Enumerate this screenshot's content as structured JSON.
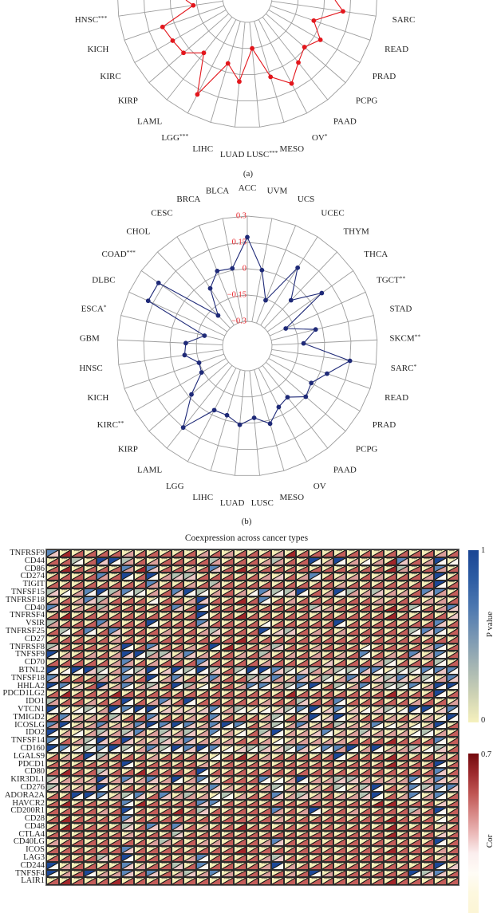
{
  "figure": {
    "panel_a_label": "(a)",
    "panel_b_label": "(b)"
  },
  "chart_data": [
    {
      "type": "radar",
      "panel": "(a)",
      "axes_count": 33,
      "ring_count": 5,
      "radial_range": [
        -0.3,
        0.3
      ],
      "axis_labels": [
        {
          "index": 9,
          "label": "HNSC",
          "sig": "***"
        },
        {
          "index": 10,
          "label": "KICH",
          "sig": ""
        },
        {
          "index": 11,
          "label": "KIRC",
          "sig": ""
        },
        {
          "index": 12,
          "label": "KIRP",
          "sig": ""
        },
        {
          "index": 13,
          "label": "LAML",
          "sig": ""
        },
        {
          "index": 14,
          "label": "LGG",
          "sig": "***"
        },
        {
          "index": 15,
          "label": "LIHC",
          "sig": ""
        },
        {
          "index": 16,
          "label": "LUAD",
          "sig": ""
        },
        {
          "index": 17,
          "label": "LUSC",
          "sig": "***"
        },
        {
          "index": 18,
          "label": "MESO",
          "sig": ""
        },
        {
          "index": 19,
          "label": "OV",
          "sig": "*"
        },
        {
          "index": 20,
          "label": "PAAD",
          "sig": ""
        },
        {
          "index": 21,
          "label": "PCPG",
          "sig": ""
        },
        {
          "index": 22,
          "label": "PRAD",
          "sig": ""
        },
        {
          "index": 23,
          "label": "READ",
          "sig": ""
        },
        {
          "index": 24,
          "label": "SARC",
          "sig": ""
        }
      ],
      "series": [
        {
          "color": "#e3161c",
          "closed": false,
          "clip_ends": [
            {
              "x": 233,
              "y": 0
            },
            {
              "x": 420,
              "y": 0
            }
          ],
          "points": [
            {
              "index": 9,
              "axis": "HNSC",
              "value": -0.13
            },
            {
              "index": 10,
              "axis": "KICH",
              "value": 0.07
            },
            {
              "index": 11,
              "axis": "KIRC",
              "value": 0.05
            },
            {
              "index": 12,
              "axis": "KIRP",
              "value": 0.04
            },
            {
              "index": 13,
              "axis": "LAML",
              "value": -0.04
            },
            {
              "index": 14,
              "axis": "LGG",
              "value": 0.18
            },
            {
              "index": 15,
              "axis": "LIHC",
              "value": -0.05
            },
            {
              "index": 16,
              "axis": "LUAD",
              "value": 0.04
            },
            {
              "index": 17,
              "axis": "LUSC",
              "value": -0.15
            },
            {
              "index": 18,
              "axis": "MESO",
              "value": 0.03
            },
            {
              "index": 19,
              "axis": "OV",
              "value": 0.11
            },
            {
              "index": 20,
              "axis": "PAAD",
              "value": 0.03
            },
            {
              "index": 21,
              "axis": "PCPG",
              "value": -0.01
            },
            {
              "index": 22,
              "axis": "PRAD",
              "value": 0.04
            },
            {
              "index": 23,
              "axis": "READ",
              "value": -0.04
            },
            {
              "index": 24,
              "axis": "SARC",
              "value": 0.11
            }
          ]
        }
      ]
    },
    {
      "type": "radar",
      "panel": "(b)",
      "axes_count": 33,
      "ring_count": 5,
      "radial_range": [
        -0.3,
        0.3
      ],
      "tick_color": "#e8252b",
      "ring_ticks": [
        {
          "value": 0.3,
          "label": "0.3"
        },
        {
          "value": 0.15,
          "label": "0.15"
        },
        {
          "value": 0,
          "label": "0"
        },
        {
          "value": -0.15,
          "label": "−0.15"
        },
        {
          "value": -0.3,
          "label": "−0.3"
        }
      ],
      "axis_labels": [
        {
          "index": 0,
          "label": "ACC",
          "sig": ""
        },
        {
          "index": 1,
          "label": "BLCA",
          "sig": ""
        },
        {
          "index": 2,
          "label": "BRCA",
          "sig": ""
        },
        {
          "index": 3,
          "label": "CESC",
          "sig": ""
        },
        {
          "index": 4,
          "label": "CHOL",
          "sig": ""
        },
        {
          "index": 5,
          "label": "COAD",
          "sig": "***"
        },
        {
          "index": 6,
          "label": "DLBC",
          "sig": ""
        },
        {
          "index": 7,
          "label": "ESCA",
          "sig": "*"
        },
        {
          "index": 8,
          "label": "GBM",
          "sig": ""
        },
        {
          "index": 9,
          "label": "HNSC",
          "sig": ""
        },
        {
          "index": 10,
          "label": "KICH",
          "sig": ""
        },
        {
          "index": 11,
          "label": "KIRC",
          "sig": "**"
        },
        {
          "index": 12,
          "label": "KIRP",
          "sig": ""
        },
        {
          "index": 13,
          "label": "LAML",
          "sig": ""
        },
        {
          "index": 14,
          "label": "LGG",
          "sig": ""
        },
        {
          "index": 15,
          "label": "LIHC",
          "sig": ""
        },
        {
          "index": 16,
          "label": "LUAD",
          "sig": ""
        },
        {
          "index": 17,
          "label": "LUSC",
          "sig": ""
        },
        {
          "index": 18,
          "label": "MESO",
          "sig": ""
        },
        {
          "index": 19,
          "label": "OV",
          "sig": ""
        },
        {
          "index": 20,
          "label": "PAAD",
          "sig": ""
        },
        {
          "index": 21,
          "label": "PCPG",
          "sig": ""
        },
        {
          "index": 22,
          "label": "PRAD",
          "sig": ""
        },
        {
          "index": 23,
          "label": "READ",
          "sig": ""
        },
        {
          "index": 24,
          "label": "SARC",
          "sig": "*"
        },
        {
          "index": 25,
          "label": "SKCM",
          "sig": "**"
        },
        {
          "index": 26,
          "label": "STAD",
          "sig": ""
        },
        {
          "index": 27,
          "label": "TGCT",
          "sig": "**"
        },
        {
          "index": 28,
          "label": "THCA",
          "sig": ""
        },
        {
          "index": 29,
          "label": "THYM",
          "sig": ""
        },
        {
          "index": 30,
          "label": "UCEC",
          "sig": ""
        },
        {
          "index": 31,
          "label": "UCS",
          "sig": ""
        },
        {
          "index": 32,
          "label": "UVM",
          "sig": ""
        }
      ],
      "series": [
        {
          "color": "#1f2a78",
          "closed": true,
          "points": [
            {
              "index": 0,
              "axis": "ACC",
              "value": 0.18
            },
            {
              "index": 1,
              "axis": "BLCA",
              "value": 0.01
            },
            {
              "index": 2,
              "axis": "BRCA",
              "value": 0.02
            },
            {
              "index": 3,
              "axis": "CESC",
              "value": -0.05
            },
            {
              "index": 4,
              "axis": "CHOL",
              "value": -0.2
            },
            {
              "index": 5,
              "axis": "COAD",
              "value": 0.18
            },
            {
              "index": 6,
              "axis": "DLBC",
              "value": 0.18
            },
            {
              "index": 7,
              "axis": "ESCA",
              "value": -0.19
            },
            {
              "index": 8,
              "axis": "GBM",
              "value": -0.09
            },
            {
              "index": 9,
              "axis": "HNSC",
              "value": -0.08
            },
            {
              "index": 10,
              "axis": "KICH",
              "value": -0.15
            },
            {
              "index": 11,
              "axis": "KIRC",
              "value": -0.14
            },
            {
              "index": 12,
              "axis": "KIRP",
              "value": -0.02
            },
            {
              "index": 13,
              "axis": "LAML",
              "value": 0.15
            },
            {
              "index": 14,
              "axis": "LGG",
              "value": -0.03
            },
            {
              "index": 15,
              "axis": "LIHC",
              "value": -0.03
            },
            {
              "index": 16,
              "axis": "LUAD",
              "value": 0.01
            },
            {
              "index": 17,
              "axis": "LUSC",
              "value": -0.03
            },
            {
              "index": 18,
              "axis": "MESO",
              "value": 0.02
            },
            {
              "index": 19,
              "axis": "OV",
              "value": -0.05
            },
            {
              "index": 20,
              "axis": "PAAD",
              "value": -0.07
            },
            {
              "index": 21,
              "axis": "PCPG",
              "value": 0.0
            },
            {
              "index": 22,
              "axis": "PRAD",
              "value": -0.02
            },
            {
              "index": 23,
              "axis": "READ",
              "value": 0.04
            },
            {
              "index": 24,
              "axis": "SARC",
              "value": 0.15
            },
            {
              "index": 25,
              "axis": "SKCM",
              "value": -0.12
            },
            {
              "index": 26,
              "axis": "STAD",
              "value": -0.04
            },
            {
              "index": 27,
              "axis": "TGCT",
              "value": -0.2
            },
            {
              "index": 28,
              "axis": "THCA",
              "value": 0.08
            },
            {
              "index": 29,
              "axis": "THYM",
              "value": -0.08
            },
            {
              "index": 30,
              "axis": "UCEC",
              "value": 0.09
            },
            {
              "index": 31,
              "axis": "UCS",
              "value": -0.16
            },
            {
              "index": 32,
              "axis": "UVM",
              "value": 0.0
            }
          ]
        }
      ]
    },
    {
      "type": "heatmap",
      "title": "Coexpression across cancer types",
      "n_columns": 33,
      "cell_layout": "upper-left triangle = P value, lower-right triangle = Cor",
      "p_code_values": {
        "Y": 0.0,
        "G": 0.4,
        "S": 0.7,
        "B": 0.95
      },
      "cor_code_values": {
        "W": 0.02,
        "L": 0.12,
        "P": 0.25,
        "R": 0.4,
        "D": 0.55
      },
      "p_colors": {
        "Y": "#f5efb9",
        "G": "#b3c4b3",
        "S": "#5b87b9",
        "B": "#1c4897"
      },
      "cor_colors": {
        "W": "#fcf6f0",
        "L": "#edc6c5",
        "P": "#db9d9a",
        "R": "#c45d5a",
        "D": "#a1262a"
      },
      "significant_p_codes": [
        "Y"
      ],
      "significance_mark": "***",
      "rows": [
        {
          "gene": "TNFRSF9",
          "p": "SYYYYYYYYYYYYYYYYYYYYYYYYYYYYYYYY",
          "cor": "LDRRRRPRRRRRPRPRRRPDRRRRRRRRRRRPR"
        },
        {
          "gene": "CD44",
          "p": "YYGYBBGYYYYYYGYYYYGYYBYBYYYYSYYBY",
          "cor": "RRWRLWPRPRRRRPRRRPPRRWPWPWPDLRPWW"
        },
        {
          "gene": "CD86",
          "p": "YYYYYYSYSYYYYSYYYYYYYYYYYYYYGYYSY",
          "cor": "RDRRRRPDLRRPRLRDRRRRRRRRRRRDPRRPR"
        },
        {
          "gene": "CD274",
          "p": "YYYYSYBYBYGGYYYYYYYYYSYYYYYYYYYBY",
          "cor": "RRRRPRWRWPLLRRRRRPLRPWRPPRPRRRPWR"
        },
        {
          "gene": "TIGIT",
          "p": "YYYYYYYYSYYYYGYYYYYYYYYYYYYYYYYBY",
          "cor": "RRRRRRRRPRRPRPRRRRRRRRRPRRRRRRRWR"
        },
        {
          "gene": "TNFSF15",
          "p": "GYYSBGSGYYSBGYYYYSGGBYYBGYGYYYSSY",
          "cor": "LWPWWPWWPRLWWPRPWLWLWRPWPPLPPRLPR"
        },
        {
          "gene": "TNFRSF18",
          "p": "YYYSGYYYYYYYBYYYYSYYYYYYYYYYYYYYY",
          "cor": "PRPLPRRRWRRPLRRDRWRPRRRRRRPRRRPPR"
        },
        {
          "gene": "CD40",
          "p": "SYYYGYYYYYSYBYYYYYYYYGYYYYYYYGYYS",
          "cor": "LRPRPRRRRRLRWRRRRRRRRLPRRRRDRWRPL"
        },
        {
          "gene": "TNFRSF4",
          "p": "YYYYYYYYYYYYBYYYYYYYYYYYYYYYYYYYY",
          "cor": "RDRRRRRRRRRRWRRDRRRRRRRRRRRDRRRRL"
        },
        {
          "gene": "VSIR",
          "p": "GYYYSYYYBYYYSYYYYYYYYYYBYYYYYYYSY",
          "cor": "PRRRPRRRWRRRLRRRRWRRRRRWRRRRRRRLR"
        },
        {
          "gene": "TNFRSF25",
          "p": "YGYSYSYYYYYYYGYYYBYGYYYYYYYYYGSSY",
          "cor": "RWRWRLRRRPRRPLRRRWLLRPRPRRRRRWLWR"
        },
        {
          "gene": "CD27",
          "p": "YYYYYYYYYYYYYYYYYYYYYYYYYYYYYYYYY",
          "cor": "RRRRRPRRRRRRRRRDRRRRRRRRRRRRRRRRR"
        },
        {
          "gene": "TNFRSF8",
          "p": "GYYYYYBYSYYYYBYYYYGYYYYYYYYYYYYSY",
          "cor": "LRRRRPWRLRRPRWDRRPLRRPRRRWRRRRPWR"
        },
        {
          "gene": "TNFSF9",
          "p": "BYYYYYBBGGYSYYYYYGYYYYYYYSYYYSYSY",
          "cor": "WPRPRPLWPLPLPRRPRPRPRPRPRWRPRLPWR"
        },
        {
          "gene": "CD70",
          "p": "YYYYYYSYYYYYSYYYYYYYYYYYYYYGYYYGY",
          "cor": "RRRRRPPRPRRRLRRRRPRRRRLRRRPWRRRWR"
        },
        {
          "gene": "BTNL2",
          "p": "BYBBGYSGBYBGBGYGBBSGYGYGGSSYGGSSS",
          "cor": "WWWLWPWLWLWWWLRWWWLWLPPWWLWWWWWLW"
        },
        {
          "gene": "TNFSF18",
          "p": "SYYYGYSYBYSYYSYYGGSYSYGYSYYGSYGYS",
          "cor": "LRRRPPPRWPLRLPRRLLPPLPWPLRLLLPWPL"
        },
        {
          "gene": "HHLA2",
          "p": "BSYYBYSYGYBGYYYYSSYGSBYGYSYGGSYBB",
          "cor": "WWLRLPWPLRWPWRRPWWPWWWRWPWPWWWPWW"
        },
        {
          "gene": "PDCD1LG2",
          "p": "YYYYYYYYYYYYYYYYYYYYYYYYYYYYYYYBY",
          "cor": "RDRRRDRRRRRRRRRRRRRDRRRRRRRDRRRWR"
        },
        {
          "gene": "IDO1",
          "p": "GYYYYYBYYSYBYYYYYYYYGYYSYYYYYYYYY",
          "cor": "PRRPRRWRPLRWRRRRRPRRLRRWRRRRRPRRP"
        },
        {
          "gene": "VTCN1",
          "p": "BYYGYBSBBYYYYSYGYYYGSBYSYYYGYBBYS",
          "cor": "WWWWPWWWWLLLLWPWWWLWWWLWLWLWWWWLW"
        },
        {
          "gene": "TMIGD2",
          "p": "YSYYYGYYSYYYYSYYYYGYYBYBYYYYYYYYB",
          "cor": "RLPPRLRRLRRPRLRRRPWRPWLWPRRPRPPWW"
        },
        {
          "gene": "ICOSLG",
          "p": "SBYYSYYSBSBSYSBSYYGYSYYGYYSYYYYBY",
          "cor": "PWPPPPPLWLWLPLWWRPWPLPRLPPWWPWPWR"
        },
        {
          "gene": "IDO2",
          "p": "BYYYGYGSYGYGYSYYYGBYYYSYYGYYYYGYY",
          "cor": "WPWPLPLPPLPLPWPWRLWPPLWPPLPPPWWPR"
        },
        {
          "gene": "TNFSF14",
          "p": "SYYGBYBYYGYSYYYYYYYYYYYYYYYYYYYSY",
          "cor": "WRPWLRLPPLPLPPPRRPWPPPPPRRRDRRRWR"
        },
        {
          "gene": "CD160",
          "p": "BSYGSBGYSGBSBSYYGGYGSYSSBYBYYGYGY",
          "cor": "WWWWWWWPLWWLWWWLWLLWLWWPWPWPPLWLR"
        },
        {
          "gene": "LGALS9",
          "p": "YYYBGYYYYYYYYYYYYYYYYYYBYYYYYYYYY",
          "cor": "RPRWPRRRPRRRPWRDRPRRRRRWRRRDRRRPR"
        },
        {
          "gene": "PDCD1",
          "p": "YYYYYYBYYYYYYYYYYYYYYYYYYYYYYYYBY",
          "cor": "RRRRRRWRRRRRPRRRRRRRRRRRRRRDRRRWR"
        },
        {
          "gene": "CD80",
          "p": "YYYYGYYYYYYYBYYYYYYYYYYYYYYYYYYSY",
          "cor": "RDRRLRRDRRRRWRRRRRRRRRRRRRRRRRRLR"
        },
        {
          "gene": "KIR3DL1",
          "p": "GYYYBYSYSYBYSYYYYSYYBYYGGYYYYSYSY",
          "cor": "LPPPLPLPLPWPWLRRRWWPWPPLLPPPPWPLP"
        },
        {
          "gene": "CD276",
          "p": "GYYYBYYYYYYYYSYYYYGYYYYGYGBYYSGSS",
          "cor": "LPPPWPRRPRRPPLPRRPWPPPRWPLWRPWLWL"
        },
        {
          "gene": "ADORA2A",
          "p": "YYBBSYGSYSYGYYGYYYSYGYYYYGBYYSYSY",
          "cor": "RRWWWPWLRLPPPWWPRRLPLPRPPLWRPWPWR"
        },
        {
          "gene": "HAVCR2",
          "p": "YYYYYYSYYYYYSSYYYYYYYYYYYYYYYYYYY",
          "cor": "RDRRRRWDRRRRLWRRRRRRRRRRRRDDRRRLR"
        },
        {
          "gene": "CD200R1",
          "p": "YYYYYYBYYYYYGYYYYYSYYBYYYYYYYGYBY",
          "cor": "RRRRPRWRRRDRLRRRRRPRPWRRPRRRRPRWR"
        },
        {
          "gene": "CD28",
          "p": "YYYYYYSYYYYYYYYYYYYYYYYYYYYYYYYYY",
          "cor": "RDRRRRLRRRRRRRRRRRPRRRRRRRRDRRRWR"
        },
        {
          "gene": "CD48",
          "p": "YYYYYYGYSYSYYYYYYYYYYYYYYYYYYYYYY",
          "cor": "RDRRRRLRLRLRPRRDRRRRRRRRRRRDRRRPR"
        },
        {
          "gene": "CTLA4",
          "p": "YYYYYYYYYYGYYYYYYYYYYYYYYYYYYYYYY",
          "cor": "RRRRRRPRRRLRRRRRRRRRRRRRRRRDRRRLR"
        },
        {
          "gene": "CD40LG",
          "p": "YYYYYYYYYGYYYYYYYYSYYYYYYYYYYYYBY",
          "cor": "PRRRRRRRPPRRPPRRRPLRRRRRRRRRRRRWR"
        },
        {
          "gene": "ICOS",
          "p": "YYYYYYSYYYYYYYYYYYYYYYYYYYYYYYYYY",
          "cor": "RRRRRRLRRRRRRRRDRRRRRRRRRRRDRRRPR"
        },
        {
          "gene": "LAG3",
          "p": "YYYYGYBYYYYYSYYYYYGYYYYYYYYYYYYYY",
          "cor": "RRRRLRWRRRRPWRRRRPLRRRRRRRRRRRRPR"
        },
        {
          "gene": "CD244",
          "p": "BYYYYYSYYYGYSYYYYYBYYYYYYYYYYYYBY",
          "cor": "WPRRRRLPRRLRWRRRRPWPRRRRRRRRRRRWL"
        },
        {
          "gene": "TNFSF4",
          "p": "BYYBYYSYSYYGYSYYYYYYYBYYYYYYYBGSY",
          "cor": "WPRWPPLRLRPLPWPRRPRPRWPRRRRRRWLLR"
        },
        {
          "gene": "LAIR1",
          "p": "YYYYYYYYYYYYYYYYYYYYYYYYYYYYYYYYY",
          "cor": "RDRRRDRRRRRRRRRRRRRRRRRRRRRDRRRRR"
        }
      ],
      "colorbars": [
        {
          "title": "P value",
          "max_label": "1",
          "min_label": "0",
          "gradient_top_to_bottom": [
            "#1a4594",
            "#2d5ca3",
            "#4d78b0",
            "#7896b3",
            "#a3b4b3",
            "#ccd1b4",
            "#f6f1bd"
          ]
        },
        {
          "title": "Cor",
          "max_label": "0.7",
          "gradient_top_to_bottom": [
            "#730a0e",
            "#9d2a2d",
            "#bf5553",
            "#d78886",
            "#ebb9b8",
            "#fbeeee",
            "#fffcf6",
            "#fdf8df",
            "#fcf5d5"
          ]
        }
      ]
    }
  ]
}
